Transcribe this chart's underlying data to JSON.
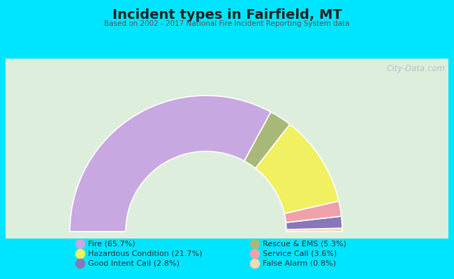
{
  "title": "Incident types in Fairfield, MT",
  "subtitle": "Based on 2002 - 2017 National Fire Incident Reporting System data",
  "background_outer": "#00e5ff",
  "background_chart_color": "#d8ead8",
  "categories": [
    "Fire",
    "Hazardous Condition",
    "Good Intent Call",
    "Rescue & EMS",
    "Service Call",
    "False Alarm"
  ],
  "values": [
    65.7,
    21.7,
    2.8,
    5.3,
    3.6,
    0.8
  ],
  "colors": [
    "#c8a8e0",
    "#f0f060",
    "#8877bb",
    "#a8b878",
    "#f0a0a8",
    "#f8d8b0"
  ],
  "legend_labels": [
    "Fire (65.7%)",
    "Hazardous Condition (21.7%)",
    "Good Intent Call (2.8%)",
    "Rescue & EMS (5.3%)",
    "Service Call (3.6%)",
    "False Alarm (0.8%)"
  ],
  "watermark": "City-Data.com",
  "title_color": "#222222",
  "subtitle_color": "#555555",
  "legend_text_color": "#333333"
}
